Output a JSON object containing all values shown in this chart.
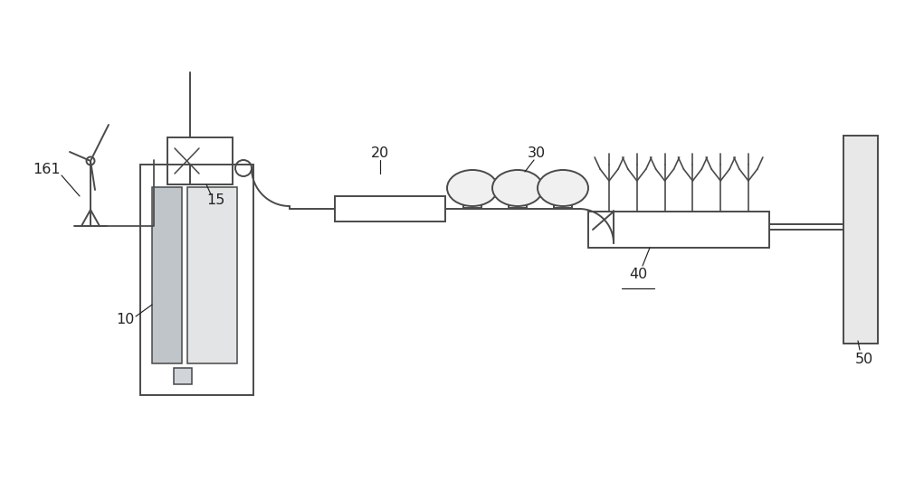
{
  "bg_color": "#ffffff",
  "line_color": "#4a4a4a",
  "line_width": 1.4,
  "label_color": "#222222",
  "lc_gray": "#888888"
}
